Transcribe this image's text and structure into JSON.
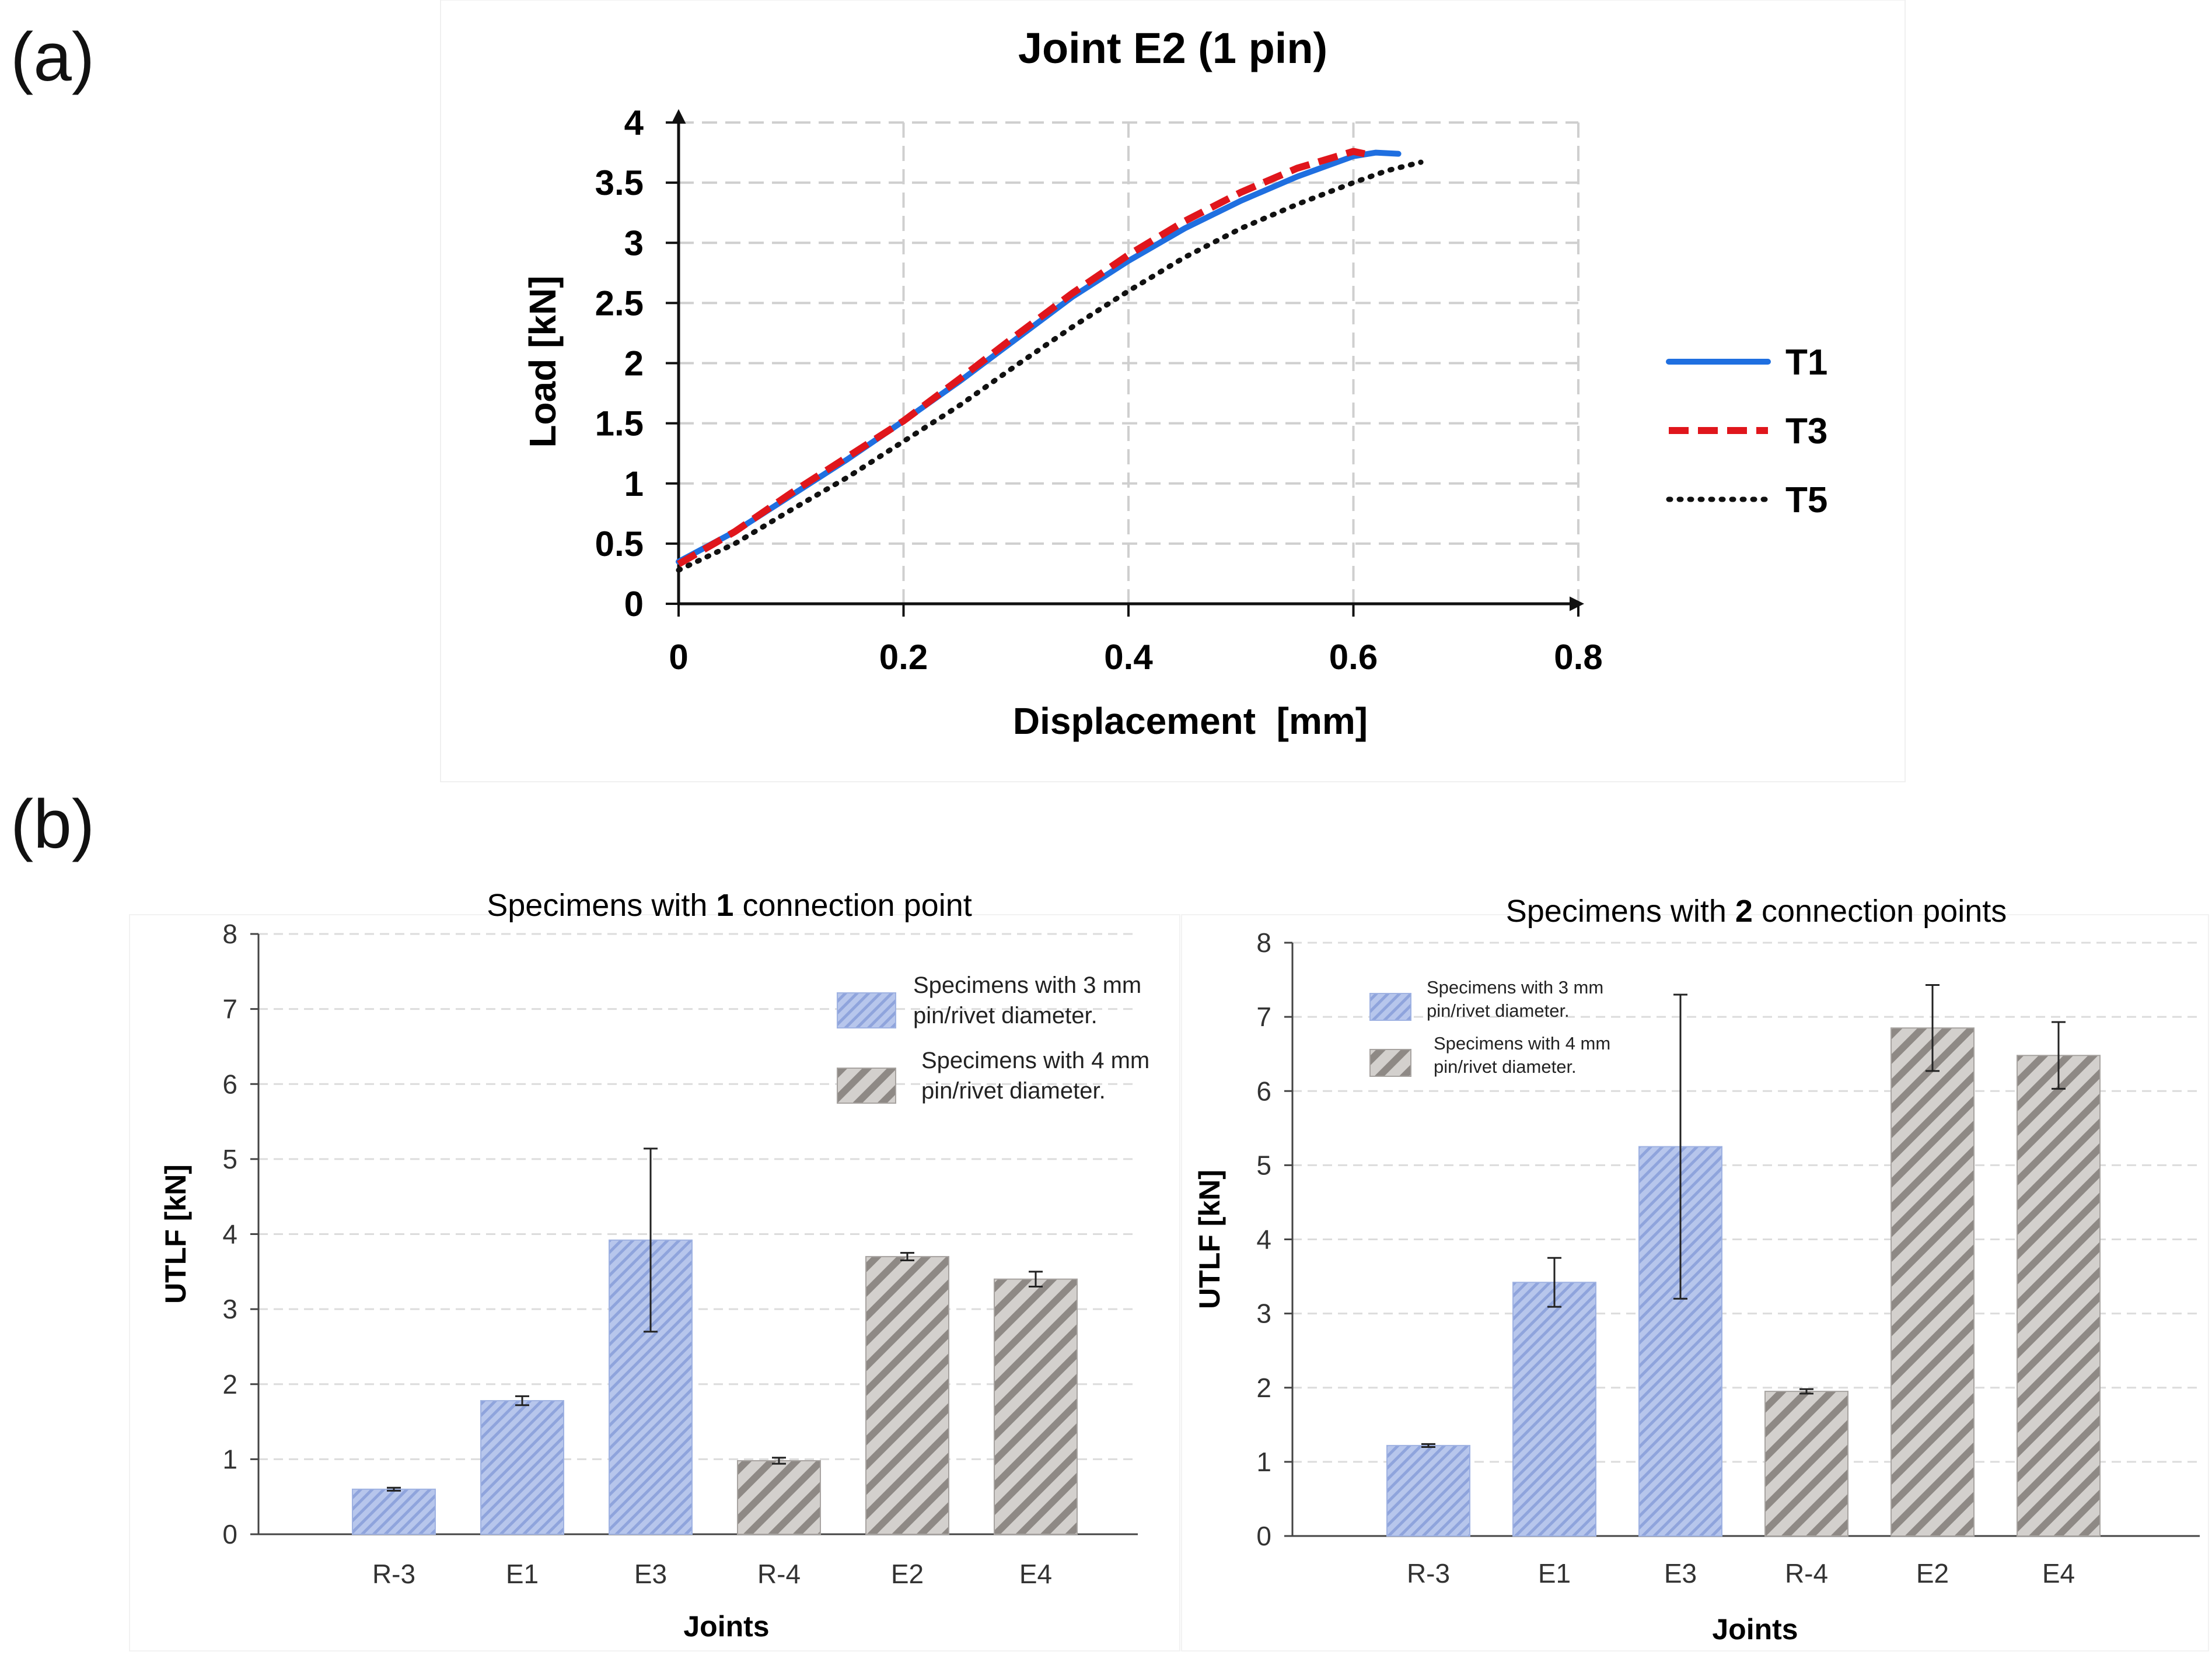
{
  "panel_labels": {
    "a": "(a)",
    "b": "(b)"
  },
  "colors": {
    "T1": "#1f6fe0",
    "T3": "#e0161c",
    "T5": "#111111",
    "bar_3mm_fill": "#b7c6ec",
    "bar_3mm_stripe": "#8fa4dc",
    "bar_4mm_fill": "#d3d0cd",
    "bar_4mm_stripe": "#8e8985",
    "grid": "#cfcfcf"
  },
  "chart_data": [
    {
      "type": "line",
      "title": "Joint E2 (1 pin)",
      "xlabel": "Displacement  [mm]",
      "ylabel": "Load [kN]",
      "xlim": [
        0,
        0.8
      ],
      "ylim": [
        0,
        4
      ],
      "xticks": [
        "0",
        "0.2",
        "0.4",
        "0.6",
        "0.8"
      ],
      "yticks": [
        "0",
        "0.5",
        "1",
        "1.5",
        "2",
        "2.5",
        "3",
        "3.5",
        "4"
      ],
      "grid": true,
      "legend_position": "right",
      "series": [
        {
          "name": "T1",
          "style": "solid",
          "x": [
            0,
            0.05,
            0.1,
            0.15,
            0.2,
            0.25,
            0.3,
            0.35,
            0.4,
            0.45,
            0.5,
            0.55,
            0.6,
            0.62,
            0.64
          ],
          "y": [
            0.35,
            0.6,
            0.9,
            1.2,
            1.52,
            1.85,
            2.2,
            2.55,
            2.85,
            3.12,
            3.35,
            3.55,
            3.72,
            3.75,
            3.74
          ]
        },
        {
          "name": "T3",
          "style": "dashed",
          "x": [
            0,
            0.05,
            0.1,
            0.15,
            0.2,
            0.25,
            0.3,
            0.35,
            0.4,
            0.45,
            0.5,
            0.55,
            0.6,
            0.61
          ],
          "y": [
            0.33,
            0.6,
            0.92,
            1.22,
            1.52,
            1.87,
            2.23,
            2.58,
            2.9,
            3.18,
            3.42,
            3.62,
            3.76,
            3.74
          ]
        },
        {
          "name": "T5",
          "style": "dotted",
          "x": [
            0,
            0.05,
            0.1,
            0.15,
            0.2,
            0.25,
            0.3,
            0.35,
            0.4,
            0.45,
            0.5,
            0.55,
            0.6,
            0.63,
            0.66
          ],
          "y": [
            0.28,
            0.5,
            0.78,
            1.05,
            1.35,
            1.65,
            1.98,
            2.3,
            2.6,
            2.88,
            3.12,
            3.32,
            3.5,
            3.6,
            3.67
          ]
        }
      ]
    },
    {
      "type": "bar",
      "title_pre": "Specimens with ",
      "title_bold": "1",
      "title_post": " connection point",
      "xlabel": "Joints",
      "ylabel": "UTLF [kN]",
      "ylim": [
        0,
        8
      ],
      "yticks": [
        "0",
        "1",
        "2",
        "3",
        "4",
        "5",
        "6",
        "7",
        "8"
      ],
      "categories": [
        "R-3",
        "E1",
        "E3",
        "R-4",
        "E2",
        "E4"
      ],
      "values": [
        0.6,
        1.78,
        3.92,
        0.98,
        3.7,
        3.4
      ],
      "error": [
        0.02,
        0.06,
        1.22,
        0.04,
        0.05,
        0.1
      ],
      "groups": [
        "3mm",
        "3mm",
        "3mm",
        "4mm",
        "4mm",
        "4mm"
      ],
      "legend": [
        {
          "group": "3mm",
          "line1": "Specimens with 3 mm",
          "line2": "pin/rivet diameter."
        },
        {
          "group": "4mm",
          "line1": "Specimens with 4 mm",
          "line2": "pin/rivet diameter."
        }
      ]
    },
    {
      "type": "bar",
      "title_pre": "Specimens with ",
      "title_bold": "2",
      "title_post": " connection points",
      "xlabel": "Joints",
      "ylabel": "UTLF [kN]",
      "ylim": [
        0,
        8
      ],
      "yticks": [
        "0",
        "1",
        "2",
        "3",
        "4",
        "5",
        "6",
        "7",
        "8"
      ],
      "categories": [
        "R-3",
        "E1",
        "E3",
        "R-4",
        "E2",
        "E4"
      ],
      "values": [
        1.22,
        3.42,
        5.25,
        1.95,
        6.85,
        6.48
      ],
      "error": [
        0.02,
        0.33,
        2.05,
        0.03,
        0.58,
        0.45
      ],
      "groups": [
        "3mm",
        "3mm",
        "3mm",
        "4mm",
        "4mm",
        "4mm"
      ],
      "legend": [
        {
          "group": "3mm",
          "line1": "Specimens with 3 mm",
          "line2": "pin/rivet diameter."
        },
        {
          "group": "4mm",
          "line1": "Specimens with 4 mm",
          "line2": "pin/rivet diameter."
        }
      ]
    }
  ]
}
